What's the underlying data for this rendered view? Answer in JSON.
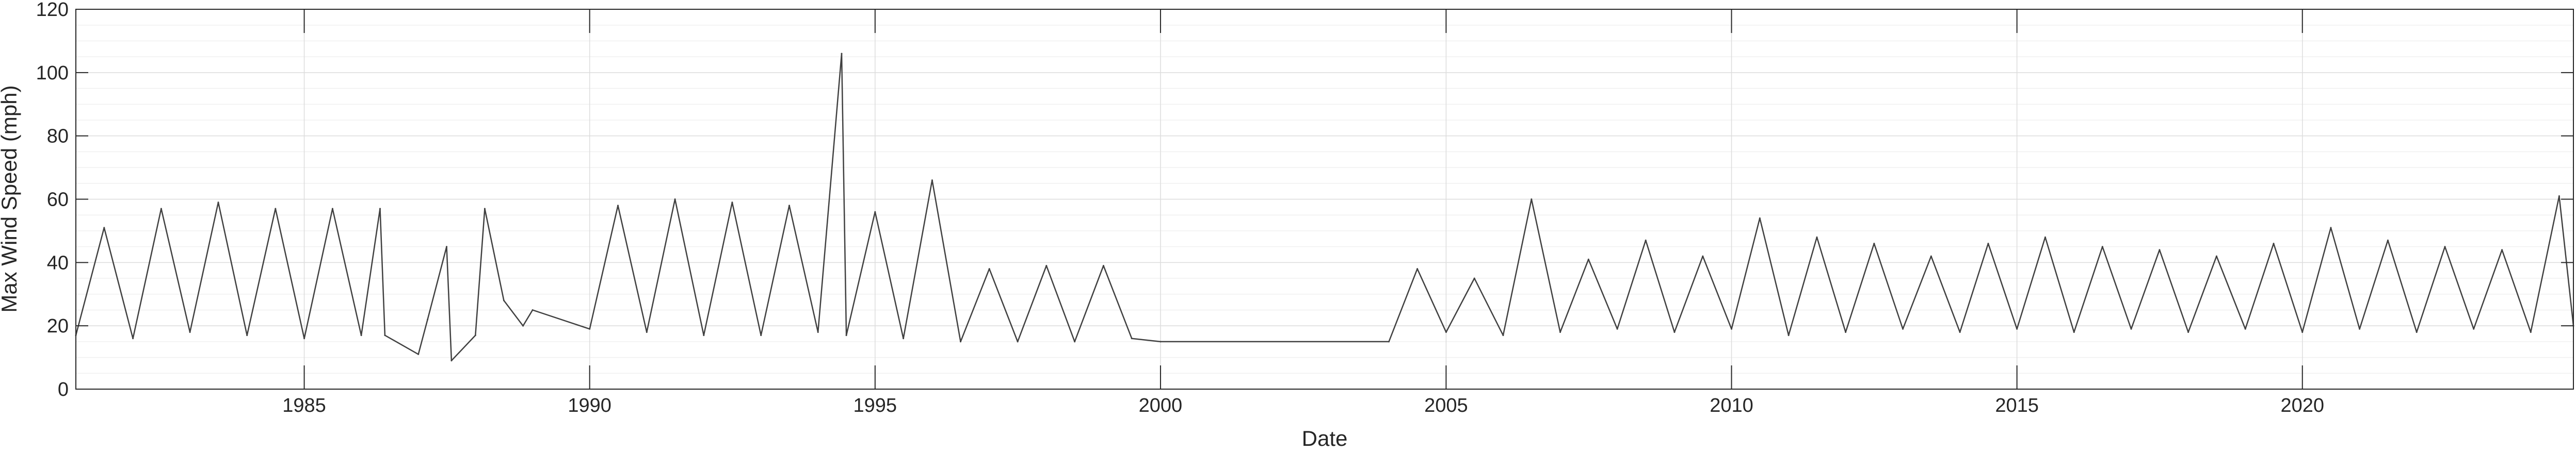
{
  "chart_data": {
    "type": "line",
    "title": "",
    "xlabel": "Date",
    "ylabel": "Max Wind Speed (mph)",
    "xlim": [
      "1981-01-01",
      "2024-09-30"
    ],
    "ylim": [
      0,
      120
    ],
    "x_ticks": [
      "1985",
      "1990",
      "1995",
      "2000",
      "2005",
      "2010",
      "2015",
      "2020"
    ],
    "y_ticks": [
      0,
      20,
      40,
      60,
      80,
      100,
      120
    ],
    "grid": true,
    "minor_grid_y": true,
    "series": [
      {
        "name": "",
        "color": "#404040",
        "x": [
          "1981-01-01",
          "1981-07-01",
          "1982-01-01",
          "1982-07-01",
          "1983-01-01",
          "1983-07-01",
          "1984-01-01",
          "1984-07-01",
          "1985-01-01",
          "1985-07-01",
          "1986-01-01",
          "1986-05-01",
          "1986-06-01",
          "1987-01-01",
          "1987-03-01",
          "1987-07-01",
          "1987-08-01",
          "1988-01-01",
          "1988-03-01",
          "1988-07-01",
          "1988-11-01",
          "1989-01-01",
          "1990-01-01",
          "1990-07-01",
          "1991-01-01",
          "1991-07-01",
          "1992-01-01",
          "1992-07-01",
          "1993-01-01",
          "1993-07-01",
          "1994-01-01",
          "1994-06-01",
          "1994-07-01",
          "1995-01-01",
          "1995-07-01",
          "1996-01-01",
          "1996-07-01",
          "1997-01-01",
          "1997-07-01",
          "1998-01-01",
          "1998-07-01",
          "1999-01-01",
          "1999-07-01",
          "2000-01-01",
          "2004-01-01",
          "2004-07-01",
          "2005-01-01",
          "2005-07-01",
          "2006-01-01",
          "2006-07-01",
          "2007-01-01",
          "2007-07-01",
          "2008-01-01",
          "2008-07-01",
          "2009-01-01",
          "2009-07-01",
          "2010-01-01",
          "2010-07-01",
          "2011-01-01",
          "2011-07-01",
          "2012-01-01",
          "2012-07-01",
          "2013-01-01",
          "2013-07-01",
          "2014-01-01",
          "2014-07-01",
          "2015-01-01",
          "2015-07-01",
          "2016-01-01",
          "2016-07-01",
          "2017-01-01",
          "2017-07-01",
          "2018-01-01",
          "2018-07-01",
          "2019-01-01",
          "2019-07-01",
          "2020-01-01",
          "2020-07-01",
          "2021-01-01",
          "2021-07-01",
          "2022-01-01",
          "2022-07-01",
          "2023-01-01",
          "2023-07-01",
          "2024-01-01",
          "2024-07-01",
          "2024-09-30"
        ],
        "y": [
          17,
          51,
          16,
          57,
          18,
          59,
          17,
          57,
          16,
          57,
          17,
          57,
          17,
          11,
          22,
          45,
          9,
          17,
          57,
          28,
          20,
          25,
          19,
          58,
          18,
          60,
          17,
          59,
          17,
          58,
          18,
          106,
          17,
          56,
          16,
          66,
          15,
          38,
          15,
          39,
          15,
          39,
          16,
          15,
          15,
          38,
          18,
          35,
          17,
          60,
          18,
          41,
          19,
          47,
          18,
          42,
          19,
          54,
          17,
          48,
          18,
          46,
          19,
          42,
          18,
          46,
          19,
          48,
          18,
          45,
          19,
          44,
          18,
          42,
          19,
          46,
          18,
          51,
          19,
          47,
          18,
          45,
          19,
          44,
          18,
          61,
          20
        ]
      }
    ]
  }
}
